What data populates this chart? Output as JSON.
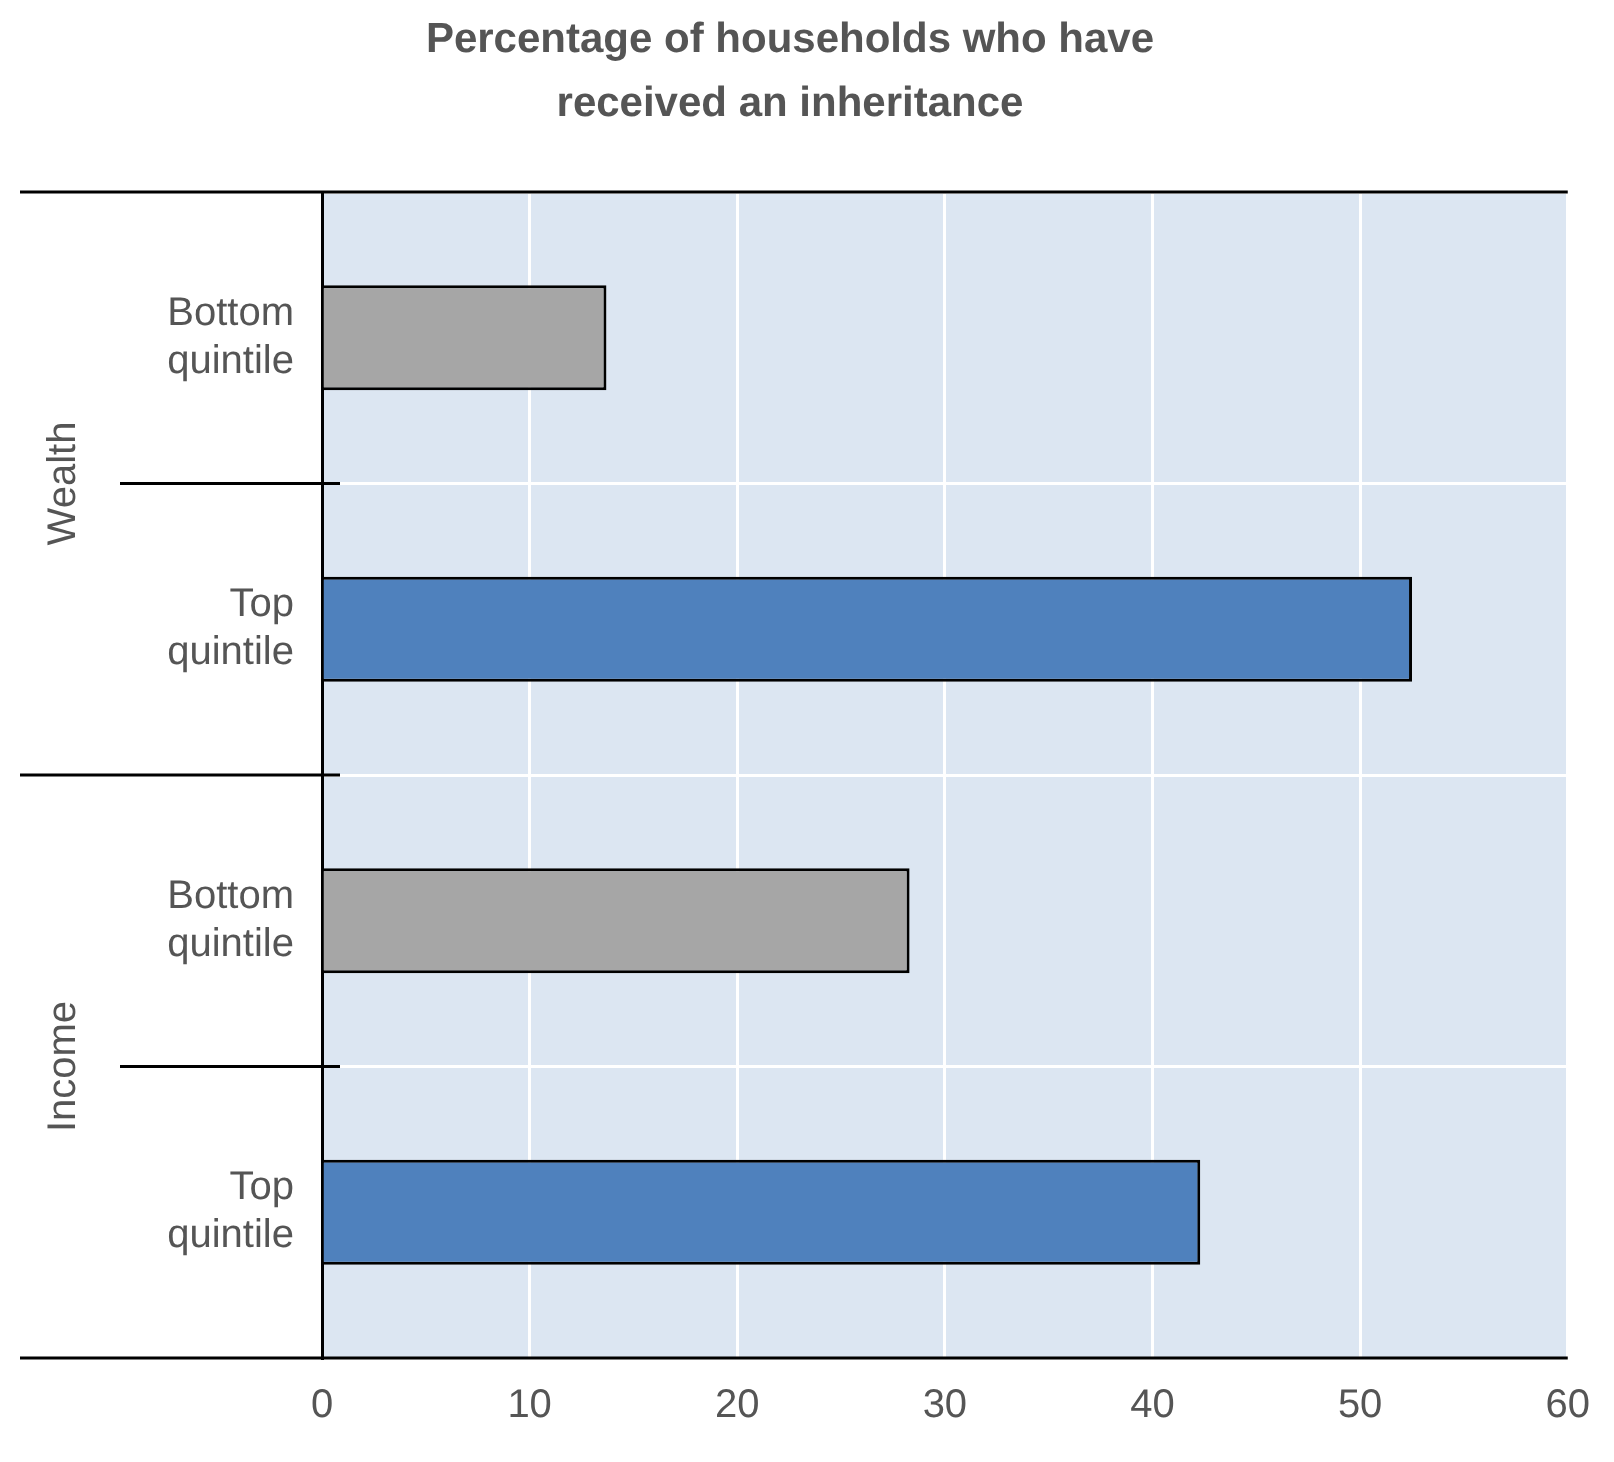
{
  "chart_data": {
    "type": "bar",
    "orientation": "horizontal",
    "title": "Percentage of households who have received an inheritance",
    "categories": [
      "Bottom quintile",
      "Top quintile",
      "Bottom quintile",
      "Top quintile"
    ],
    "values": [
      13.7,
      52.5,
      28.3,
      42.3
    ],
    "colors": [
      "#a6a6a6",
      "#4f81bd",
      "#a6a6a6",
      "#4f81bd"
    ],
    "xlim": [
      0,
      60
    ],
    "xticks": [
      0,
      10,
      20,
      30,
      40,
      50,
      60
    ],
    "annotations": [
      "Wealth",
      "Income"
    ],
    "grid": true,
    "legend": false
  }
}
